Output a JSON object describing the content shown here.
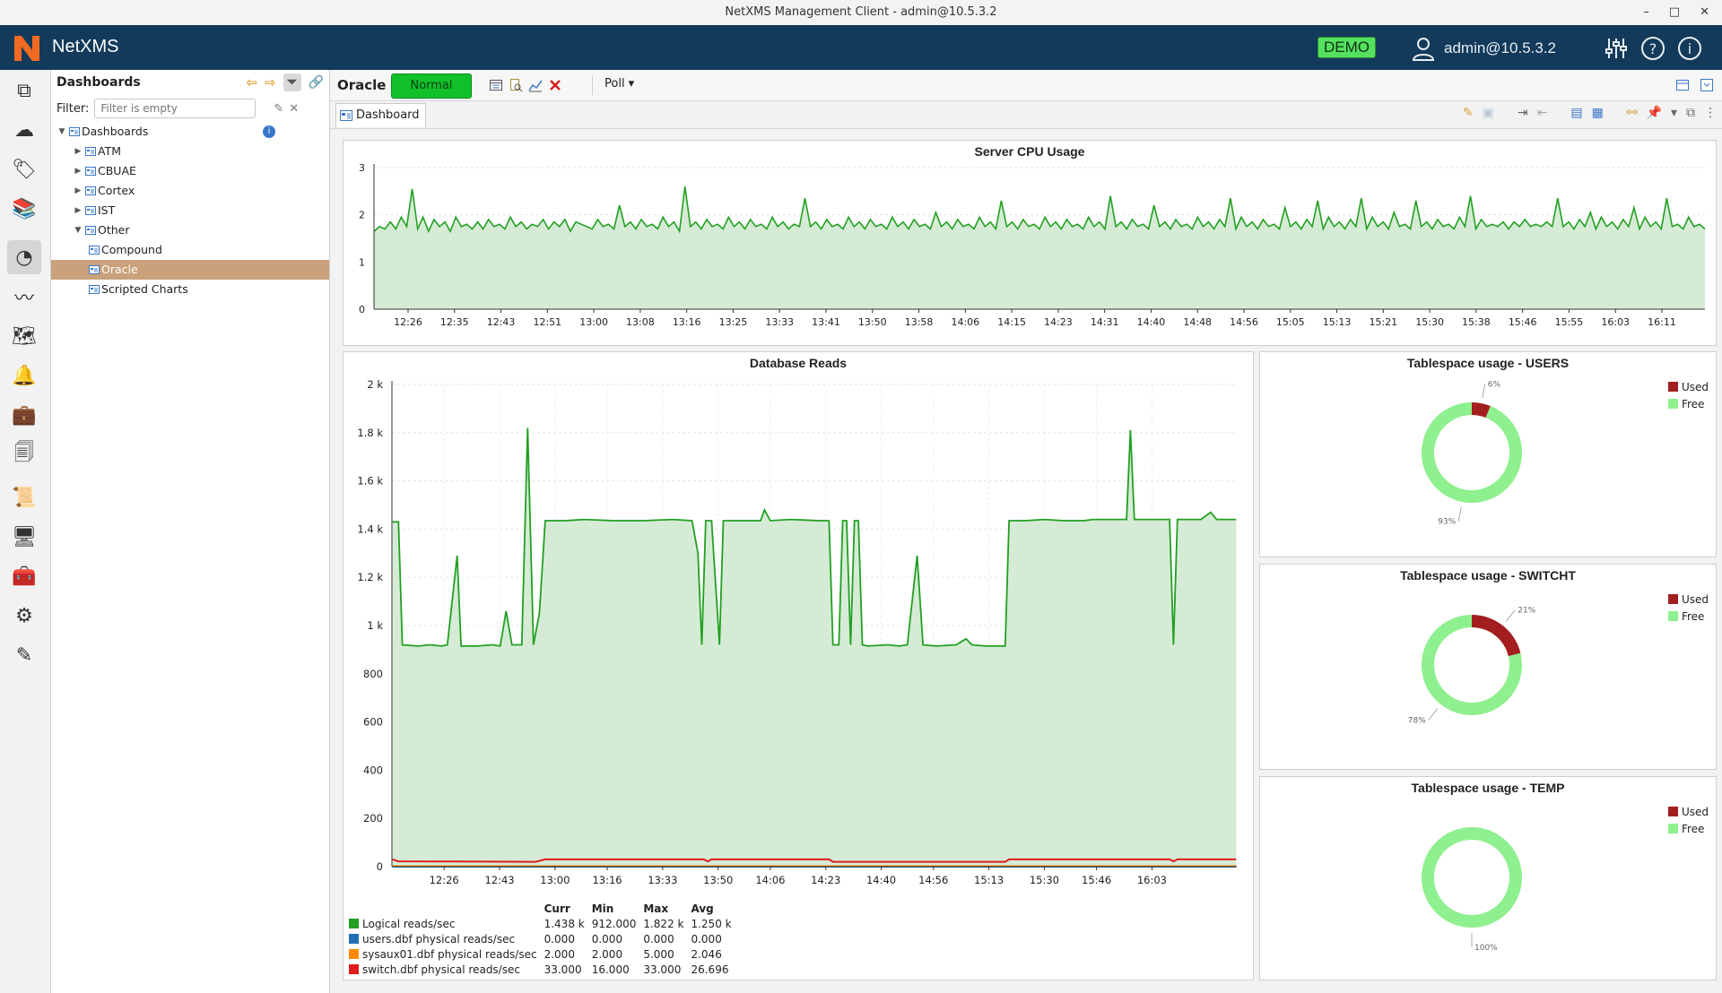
{
  "window": {
    "title": "NetXMS Management Client - admin@10.5.3.2",
    "controls": [
      "–",
      "□",
      "✕"
    ]
  },
  "header": {
    "brand": "NetXMS",
    "badge": "DEMO",
    "user": "admin@10.5.3.2",
    "icons": [
      "user-icon",
      "sliders-icon",
      "help-icon",
      "info-icon"
    ]
  },
  "colors": {
    "header_bg": "#133a5a",
    "brand_orange": "#f26a21",
    "status_normal": "#11c12a",
    "selection": "#c9a27b",
    "line_green": "#22a022",
    "fill_green": "#d6ebd6",
    "used": "#a31f1f",
    "free": "#8ef08e"
  },
  "leftbar": {
    "items": [
      "objects-icon",
      "cloud-icon",
      "tags-icon",
      "library-icon",
      "dashboard-icon",
      "graph-icon",
      "map-icon",
      "alarm-bell-icon",
      "briefcase-icon",
      "documents-icon",
      "script-icon",
      "monitor-icon",
      "toolbox-icon",
      "settings-icon",
      "edit-note-icon"
    ],
    "active": "dashboard-icon"
  },
  "nav": {
    "title": "Dashboards",
    "filter_label": "Filter:",
    "filter_placeholder": "Filter is empty",
    "tree": [
      {
        "label": "Dashboards",
        "level": 0,
        "toggle": "▼",
        "kind": "root"
      },
      {
        "label": "ATM",
        "level": 1,
        "toggle": "▶",
        "kind": "group"
      },
      {
        "label": "CBUAE",
        "level": 1,
        "toggle": "▶",
        "kind": "group"
      },
      {
        "label": "Cortex",
        "level": 1,
        "toggle": "▶",
        "kind": "group"
      },
      {
        "label": "IST",
        "level": 1,
        "toggle": "▶",
        "kind": "group"
      },
      {
        "label": "Other",
        "level": 1,
        "toggle": "▼",
        "kind": "group"
      },
      {
        "label": "Compound",
        "level": 2,
        "toggle": "",
        "kind": "dashboard"
      },
      {
        "label": "Oracle",
        "level": 2,
        "toggle": "",
        "kind": "dashboard",
        "selected": true
      },
      {
        "label": "Scripted Charts",
        "level": 2,
        "toggle": "",
        "kind": "dashboard"
      }
    ]
  },
  "object_bar": {
    "name": "Oracle",
    "status": "Normal",
    "poll_label": "Poll ▾",
    "tab": "Dashboard"
  },
  "chart_data": [
    {
      "type": "area",
      "title": "Server CPU Usage",
      "ylim": [
        0,
        3
      ],
      "yticks": [
        "0",
        "1",
        "2",
        "3"
      ],
      "xticks": [
        "12:26",
        "12:35",
        "12:43",
        "12:51",
        "13:00",
        "13:08",
        "13:16",
        "13:25",
        "13:33",
        "13:41",
        "13:50",
        "13:58",
        "14:06",
        "14:15",
        "14:23",
        "14:31",
        "14:40",
        "14:48",
        "14:56",
        "15:05",
        "15:13",
        "15:21",
        "15:30",
        "15:38",
        "15:46",
        "15:55",
        "16:03",
        "16:11"
      ],
      "series": [
        {
          "color": "#22a022",
          "values": [
            1.65,
            1.75,
            1.7,
            1.85,
            1.7,
            1.95,
            1.75,
            2.55,
            1.7,
            1.95,
            1.65,
            1.9,
            1.75,
            1.85,
            1.65,
            1.95,
            1.75,
            1.8,
            1.7,
            1.85,
            1.7,
            1.9,
            1.75,
            1.8,
            1.7,
            1.95,
            1.75,
            1.85,
            1.7,
            1.8,
            1.75,
            1.9,
            1.7,
            1.85,
            1.75,
            1.9,
            1.65,
            1.85,
            1.8,
            1.75,
            1.7,
            1.9,
            1.75,
            1.8,
            1.7,
            2.2,
            1.75,
            1.85,
            1.7,
            1.9,
            1.75,
            1.8,
            1.7,
            1.95,
            1.75,
            1.85,
            1.65,
            2.6,
            1.75,
            1.85,
            1.7,
            1.9,
            1.75,
            1.8,
            1.7,
            1.95,
            1.75,
            1.85,
            1.7,
            1.9,
            1.75,
            1.8,
            1.7,
            1.95,
            1.75,
            1.85,
            1.7,
            1.8,
            1.75,
            2.35,
            1.75,
            1.85,
            1.7,
            1.9,
            1.75,
            1.8,
            1.7,
            1.95,
            1.75,
            1.85,
            1.7,
            1.9,
            1.75,
            1.8,
            1.7,
            1.95,
            1.75,
            1.85,
            1.7,
            1.9,
            1.75,
            1.8,
            1.7,
            2.05,
            1.75,
            1.85,
            1.7,
            1.9,
            1.75,
            1.8,
            1.7,
            1.95,
            1.75,
            1.85,
            1.7,
            2.3,
            1.75,
            1.85,
            1.7,
            1.9,
            1.75,
            1.8,
            1.7,
            1.95,
            1.75,
            1.85,
            1.7,
            1.9,
            1.75,
            1.8,
            1.7,
            1.95,
            1.75,
            1.85,
            1.7,
            2.4,
            1.75,
            1.85,
            1.7,
            1.9,
            1.75,
            1.8,
            1.7,
            2.2,
            1.75,
            1.85,
            1.7,
            1.9,
            1.75,
            1.8,
            1.7,
            1.95,
            1.75,
            1.85,
            1.7,
            1.9,
            1.75,
            2.35,
            1.7,
            1.95,
            1.75,
            1.85,
            1.7,
            1.9,
            1.75,
            1.8,
            1.7,
            2.15,
            1.75,
            1.85,
            1.7,
            1.9,
            1.75,
            2.3,
            1.7,
            1.95,
            1.75,
            1.85,
            1.7,
            1.9,
            1.75,
            2.35,
            1.7,
            1.95,
            1.75,
            1.85,
            1.7,
            2.05,
            1.75,
            1.8,
            1.7,
            2.3,
            1.75,
            1.85,
            1.7,
            1.9,
            1.75,
            1.8,
            1.7,
            1.95,
            1.75,
            2.4,
            1.7,
            1.9,
            1.75,
            1.8,
            1.75,
            1.85,
            1.7,
            1.85,
            1.75,
            1.9,
            1.75,
            1.8,
            1.75,
            1.85,
            1.75,
            2.35,
            1.75,
            1.85,
            1.7,
            1.9,
            1.75,
            2.05,
            1.7,
            1.95,
            1.75,
            1.85,
            1.7,
            1.9,
            1.75,
            2.15,
            1.7,
            1.95,
            1.75,
            1.85,
            1.7,
            2.35,
            1.75,
            1.8,
            1.7,
            1.95,
            1.75,
            1.8,
            1.7
          ]
        }
      ]
    },
    {
      "type": "area",
      "title": "Database Reads",
      "ylim": [
        0,
        2000
      ],
      "yticks": [
        "0",
        "200",
        "400",
        "600",
        "800",
        "1 k",
        "1.2 k",
        "1.4 k",
        "1.6 k",
        "1.8 k",
        "2 k"
      ],
      "xticks": [
        "12:26",
        "12:43",
        "13:00",
        "13:16",
        "13:33",
        "13:50",
        "14:06",
        "14:23",
        "14:40",
        "14:56",
        "15:13",
        "15:30",
        "15:46",
        "16:03"
      ],
      "x_extent": [
        12.1667,
        16.4833
      ],
      "series": [
        {
          "name": "Logical reads/sec",
          "color": "#22a022",
          "points": [
            [
              12.17,
              1430
            ],
            [
              12.2,
              1430
            ],
            [
              12.22,
              920
            ],
            [
              12.3,
              915
            ],
            [
              12.36,
              920
            ],
            [
              12.42,
              915
            ],
            [
              12.45,
              920
            ],
            [
              12.5,
              1290
            ],
            [
              12.52,
              915
            ],
            [
              12.6,
              915
            ],
            [
              12.68,
              920
            ],
            [
              12.72,
              915
            ],
            [
              12.75,
              1060
            ],
            [
              12.78,
              920
            ],
            [
              12.83,
              920
            ],
            [
              12.86,
              1820
            ],
            [
              12.89,
              920
            ],
            [
              12.92,
              1050
            ],
            [
              12.95,
              1435
            ],
            [
              13.05,
              1435
            ],
            [
              13.15,
              1440
            ],
            [
              13.3,
              1435
            ],
            [
              13.45,
              1435
            ],
            [
              13.6,
              1440
            ],
            [
              13.7,
              1435
            ],
            [
              13.73,
              1300
            ],
            [
              13.75,
              920
            ],
            [
              13.77,
              1435
            ],
            [
              13.8,
              1435
            ],
            [
              13.84,
              920
            ],
            [
              13.86,
              1435
            ],
            [
              13.95,
              1435
            ],
            [
              14.05,
              1435
            ],
            [
              14.07,
              1480
            ],
            [
              14.1,
              1435
            ],
            [
              14.2,
              1440
            ],
            [
              14.35,
              1435
            ],
            [
              14.4,
              1435
            ],
            [
              14.42,
              920
            ],
            [
              14.45,
              920
            ],
            [
              14.47,
              1435
            ],
            [
              14.49,
              1435
            ],
            [
              14.51,
              920
            ],
            [
              14.53,
              1435
            ],
            [
              14.55,
              1435
            ],
            [
              14.57,
              920
            ],
            [
              14.6,
              915
            ],
            [
              14.7,
              920
            ],
            [
              14.76,
              915
            ],
            [
              14.8,
              920
            ],
            [
              14.85,
              1290
            ],
            [
              14.88,
              920
            ],
            [
              14.95,
              915
            ],
            [
              15.05,
              920
            ],
            [
              15.1,
              945
            ],
            [
              15.13,
              920
            ],
            [
              15.2,
              915
            ],
            [
              15.3,
              915
            ],
            [
              15.32,
              1435
            ],
            [
              15.4,
              1435
            ],
            [
              15.5,
              1440
            ],
            [
              15.6,
              1435
            ],
            [
              15.7,
              1435
            ],
            [
              15.75,
              1440
            ],
            [
              15.85,
              1440
            ],
            [
              15.92,
              1440
            ],
            [
              15.94,
              1810
            ],
            [
              15.96,
              1440
            ],
            [
              16.05,
              1440
            ],
            [
              16.1,
              1440
            ],
            [
              16.14,
              1440
            ],
            [
              16.16,
              920
            ],
            [
              16.18,
              1440
            ],
            [
              16.25,
              1440
            ],
            [
              16.3,
              1440
            ],
            [
              16.35,
              1470
            ],
            [
              16.38,
              1440
            ],
            [
              16.45,
              1440
            ],
            [
              16.48,
              1440
            ]
          ],
          "stats": {
            "curr": "1.438 k",
            "min": "912.000",
            "max": "1.822 k",
            "avg": "1.250 k"
          }
        },
        {
          "name": "users.dbf physical reads/sec",
          "color": "#1f6fb4",
          "points": [
            [
              12.17,
              0
            ],
            [
              16.48,
              0
            ]
          ],
          "stats": {
            "curr": "0.000",
            "min": "0.000",
            "max": "0.000",
            "avg": "0.000"
          }
        },
        {
          "name": "sysaux01.dbf physical reads/sec",
          "color": "#ff8800",
          "points": [
            [
              12.17,
              2
            ],
            [
              16.48,
              2
            ]
          ],
          "stats": {
            "curr": "2.000",
            "min": "2.000",
            "max": "5.000",
            "avg": "2.046"
          }
        },
        {
          "name": "switch.dbf physical reads/sec",
          "color": "#e01b1b",
          "points": [
            [
              12.17,
              30
            ],
            [
              12.2,
              22
            ],
            [
              12.9,
              20
            ],
            [
              12.95,
              30
            ],
            [
              13.76,
              30
            ],
            [
              13.78,
              22
            ],
            [
              13.8,
              30
            ],
            [
              14.4,
              30
            ],
            [
              14.42,
              20
            ],
            [
              15.3,
              20
            ],
            [
              15.32,
              30
            ],
            [
              16.14,
              30
            ],
            [
              16.16,
              22
            ],
            [
              16.18,
              30
            ],
            [
              16.48,
              30
            ]
          ],
          "stats": {
            "curr": "33.000",
            "min": "16.000",
            "max": "33.000",
            "avg": "26.696"
          }
        }
      ],
      "legend_headers": [
        "Curr",
        "Min",
        "Max",
        "Avg"
      ]
    },
    {
      "type": "pie",
      "title": "Tablespace usage - USERS",
      "labels": [
        "Used",
        "Free"
      ],
      "values": [
        6,
        93
      ],
      "value_labels": [
        "6%",
        "93%"
      ],
      "colors": [
        "#a31f1f",
        "#8ef08e"
      ]
    },
    {
      "type": "pie",
      "title": "Tablespace usage - SWITCHT",
      "labels": [
        "Used",
        "Free"
      ],
      "values": [
        21,
        78
      ],
      "value_labels": [
        "21%",
        "78%"
      ],
      "colors": [
        "#a31f1f",
        "#8ef08e"
      ]
    },
    {
      "type": "pie",
      "title": "Tablespace usage - TEMP",
      "labels": [
        "Used",
        "Free"
      ],
      "values": [
        0,
        100
      ],
      "value_labels": [
        "",
        "100%"
      ],
      "colors": [
        "#a31f1f",
        "#8ef08e"
      ]
    }
  ]
}
